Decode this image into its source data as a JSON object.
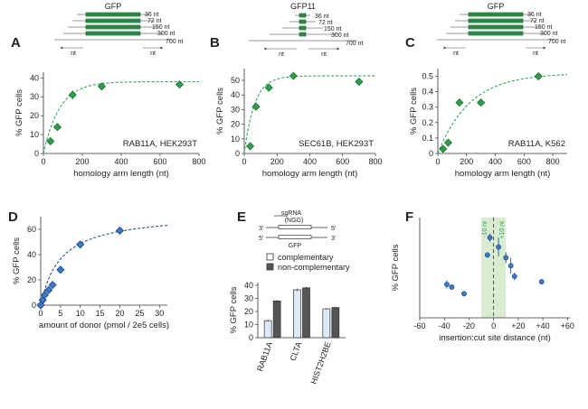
{
  "colors": {
    "green": "#2f9e4a",
    "green_dark": "#1f6b35",
    "green_fit": "#33a35a",
    "blue": "#3b7ac9",
    "blue_dark": "#1d3f7a",
    "blue_fit": "#2b4e9a",
    "blue_light": "#dceaf7",
    "gray_bar": "#555555",
    "green_band": "#d9ecd2"
  },
  "schematics": {
    "A": {
      "title": "GFP",
      "lengths": [
        "36 nt",
        "72 nt",
        "150 nt",
        "300 nt",
        "700 nt"
      ],
      "arm": "nt"
    },
    "B": {
      "title": "GFP11",
      "lengths": [
        "36 nt",
        "72 nt",
        "150 nt",
        "300 nt",
        "700 nt"
      ],
      "arm": "nt"
    },
    "C": {
      "title": "GFP",
      "lengths": [
        "36 nt",
        "72 nt",
        "150 nt",
        "300 nt",
        "700 nt"
      ],
      "arm": "nt"
    },
    "E": {
      "sgrna": "sgRNA",
      "pam": "(NGG)",
      "prime3_top": "3'",
      "prime5_top": "5'",
      "prime5_bot": "5'",
      "prime3_bot": "3'",
      "gfp": "GFP"
    }
  },
  "chart_data": [
    {
      "id": "A",
      "type": "scatter",
      "panel_label": "A",
      "xlabel": "homology arm length (nt)",
      "ylabel": "% GFP cells",
      "annotation": "RAB11A, HEK293T",
      "xlim": [
        0,
        800
      ],
      "ylim": [
        0,
        43
      ],
      "xticks": [
        0,
        200,
        400,
        600,
        800
      ],
      "yticks": [
        0,
        10,
        20,
        30,
        40
      ],
      "tick_labels_x": [
        "0",
        "200",
        "400",
        "600",
        "800"
      ],
      "tick_labels_y": [
        "0",
        "10",
        "20",
        "30",
        "40"
      ],
      "points": [
        {
          "x": 36,
          "y": 6.5,
          "err": 2
        },
        {
          "x": 72,
          "y": 14,
          "err": 2
        },
        {
          "x": 150,
          "y": 31,
          "err": 2.5
        },
        {
          "x": 300,
          "y": 35.5,
          "err": 2
        },
        {
          "x": 700,
          "y": 36.5,
          "err": 2
        }
      ],
      "fit": {
        "ymax": 38,
        "k": 0.012
      },
      "marker": "diamond",
      "marker_color": "green"
    },
    {
      "id": "B",
      "type": "scatter",
      "panel_label": "B",
      "xlabel": "homology arm length (nt)",
      "ylabel": "% GFP cells",
      "annotation": "SEC61B, HEK293T",
      "xlim": [
        0,
        800
      ],
      "ylim": [
        0,
        58
      ],
      "xticks": [
        0,
        200,
        400,
        600,
        800
      ],
      "yticks": [
        0,
        10,
        20,
        30,
        40,
        50
      ],
      "tick_labels_x": [
        "0",
        "200",
        "400",
        "600",
        "800"
      ],
      "tick_labels_y": [
        "0",
        "10",
        "20",
        "30",
        "40",
        "50"
      ],
      "points": [
        {
          "x": 36,
          "y": 5,
          "err": 0
        },
        {
          "x": 72,
          "y": 32,
          "err": 0
        },
        {
          "x": 150,
          "y": 45,
          "err": 0
        },
        {
          "x": 300,
          "y": 53,
          "err": 0
        },
        {
          "x": 700,
          "y": 49,
          "err": 0
        }
      ],
      "fit": {
        "ymax": 53,
        "k": 0.016
      },
      "marker": "diamond",
      "marker_color": "green"
    },
    {
      "id": "C",
      "type": "scatter",
      "panel_label": "C",
      "xlabel": "homology arm length (nt)",
      "ylabel": "% GFP cells",
      "annotation": "RAB11A, K562",
      "xlim": [
        0,
        900
      ],
      "ylim": [
        0,
        0.55
      ],
      "xticks": [
        0,
        200,
        400,
        600,
        800
      ],
      "yticks": [
        0,
        0.1,
        0.2,
        0.3,
        0.4,
        0.5
      ],
      "tick_labels_x": [
        "0",
        "200",
        "400",
        "600",
        "800"
      ],
      "tick_labels_y": [
        "0",
        "0.1",
        "0.2",
        "0.3",
        "0.4",
        "0.5"
      ],
      "points": [
        {
          "x": 36,
          "y": 0.03,
          "err": 0
        },
        {
          "x": 72,
          "y": 0.07,
          "err": 0
        },
        {
          "x": 150,
          "y": 0.33,
          "err": 0
        },
        {
          "x": 300,
          "y": 0.33,
          "err": 0
        },
        {
          "x": 700,
          "y": 0.5,
          "err": 0
        }
      ],
      "fit": {
        "ymax": 0.52,
        "k": 0.0045
      },
      "marker": "diamond",
      "marker_color": "green"
    },
    {
      "id": "D",
      "type": "scatter",
      "panel_label": "D",
      "xlabel": "amount of donor (pmol / 2e5 cells)",
      "ylabel": "% GFP cells",
      "xlim": [
        0,
        32
      ],
      "ylim": [
        0,
        70
      ],
      "xticks": [
        0,
        5,
        10,
        15,
        20,
        25,
        30
      ],
      "yticks": [
        0,
        20,
        40,
        60
      ],
      "tick_labels_x": [
        "0",
        "5",
        "10",
        "15",
        "20",
        "25",
        "30"
      ],
      "tick_labels_y": [
        "0",
        "20",
        "40",
        "60"
      ],
      "points": [
        {
          "x": 0,
          "y": 0,
          "err": 0
        },
        {
          "x": 0.5,
          "y": 4,
          "err": 0
        },
        {
          "x": 1,
          "y": 8,
          "err": 0
        },
        {
          "x": 2,
          "y": 12,
          "err": 0
        },
        {
          "x": 3,
          "y": 16,
          "err": 0
        },
        {
          "x": 5,
          "y": 28,
          "err": 0
        },
        {
          "x": 10,
          "y": 48,
          "err": 0
        },
        {
          "x": 20,
          "y": 59,
          "err": 0
        }
      ],
      "fit": {
        "vmax": 73,
        "km": 5
      },
      "marker": "diamond",
      "marker_color": "blue"
    },
    {
      "id": "E",
      "type": "bar",
      "panel_label": "E",
      "ylabel": "% GFP cells",
      "categories": [
        "RAB11A",
        "CLTA",
        "HIST2H2BE"
      ],
      "series": [
        {
          "name": "complementary",
          "values": [
            13,
            36.5,
            22
          ],
          "errors": [
            0.8,
            1,
            0.6
          ]
        },
        {
          "name": "non-complementary",
          "values": [
            28,
            38,
            23
          ],
          "errors": [
            0.8,
            1,
            0.6
          ]
        }
      ],
      "ylim": [
        0,
        42
      ],
      "yticks": [
        0,
        10,
        20,
        30,
        40
      ],
      "tick_labels_y": [
        "0",
        "10",
        "20",
        "30",
        "40"
      ],
      "legend": [
        "complementary",
        "non-complementary"
      ]
    },
    {
      "id": "F",
      "type": "scatter",
      "panel_label": "F",
      "xlabel": "insertion:cut site distance (nt)",
      "ylabel": "% GFP cells",
      "xlim": [
        -60,
        62
      ],
      "ylim": [
        0,
        75
      ],
      "xticks": [
        -60,
        -40,
        -20,
        0,
        20,
        40,
        60
      ],
      "tick_labels_x": [
        "-60",
        "-40",
        "-20",
        "0",
        "+20",
        "+40",
        "+60"
      ],
      "band": [
        -10,
        10
      ],
      "band_labels": [
        "-10 nt",
        "+10 nt"
      ],
      "points": [
        {
          "x": -38,
          "y": 25,
          "err": 3
        },
        {
          "x": -34,
          "y": 23,
          "err": 2
        },
        {
          "x": -24,
          "y": 18,
          "err": 2
        },
        {
          "x": -5,
          "y": 47,
          "err": 0
        },
        {
          "x": -3,
          "y": 60,
          "err": 3
        },
        {
          "x": 4,
          "y": 53,
          "err": 7
        },
        {
          "x": 10,
          "y": 45,
          "err": 4
        },
        {
          "x": 14,
          "y": 39,
          "err": 6
        },
        {
          "x": 17,
          "y": 31,
          "err": 3
        },
        {
          "x": 39,
          "y": 27,
          "err": 2
        }
      ],
      "marker": "circle",
      "marker_color": "blue"
    }
  ]
}
